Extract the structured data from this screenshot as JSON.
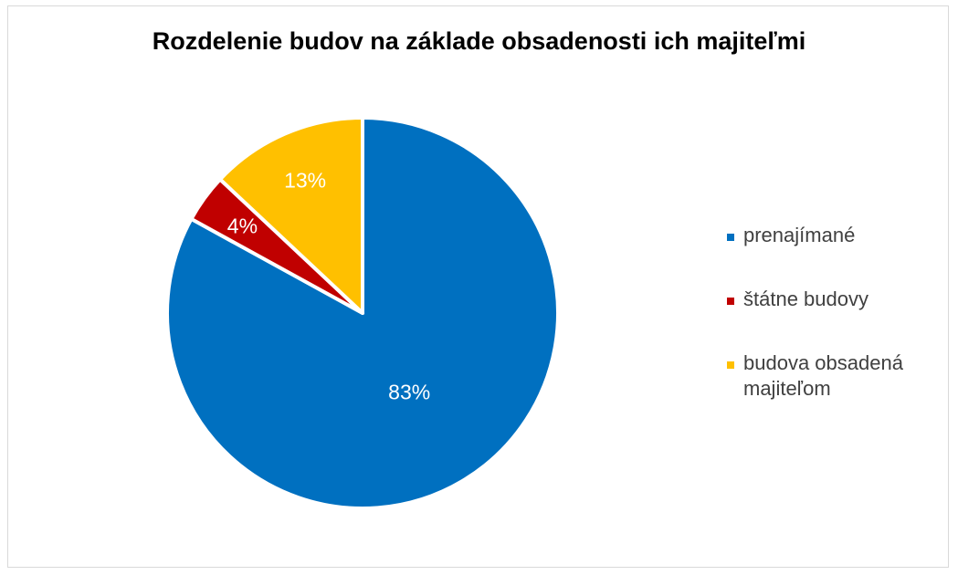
{
  "chart_data": {
    "type": "pie",
    "title": "Rozdelenie budov na základe obsadenosti ich majiteľmi",
    "slices": [
      {
        "name": "prenajímané",
        "value": 83,
        "label": "83%",
        "color": "#0070C0"
      },
      {
        "name": "štátne budovy",
        "value": 4,
        "label": "4%",
        "color": "#C00000"
      },
      {
        "name": "budova obsadená majiteľom",
        "value": 13,
        "label": "13%",
        "color": "#FFC000"
      }
    ],
    "legend_position": "right"
  }
}
